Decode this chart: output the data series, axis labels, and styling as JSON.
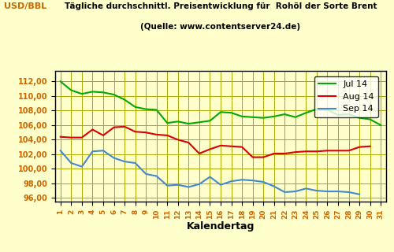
{
  "title_line1": "Tägliche durchschnittl. Preisentwicklung für  Rohöl der Sorte Brent",
  "title_line2": "(Quelle: www.contentserver24.de)",
  "ylabel": "USD/BBL",
  "xlabel": "Kalendertag",
  "background_color": "#FFFFCC",
  "ylim": [
    95.5,
    113.5
  ],
  "yticks": [
    96.0,
    98.0,
    100.0,
    102.0,
    104.0,
    106.0,
    108.0,
    110.0,
    112.0
  ],
  "days": [
    1,
    2,
    3,
    4,
    5,
    6,
    7,
    8,
    9,
    10,
    11,
    12,
    13,
    14,
    15,
    16,
    17,
    18,
    19,
    20,
    21,
    22,
    23,
    24,
    25,
    26,
    27,
    28,
    29,
    30,
    31
  ],
  "jul14": [
    112.0,
    110.8,
    110.3,
    110.6,
    110.5,
    110.2,
    109.5,
    108.5,
    108.2,
    108.1,
    106.3,
    106.5,
    106.2,
    106.4,
    106.6,
    107.8,
    107.7,
    107.2,
    107.1,
    107.0,
    107.2,
    107.5,
    107.1,
    107.7,
    108.2,
    108.1,
    107.4,
    107.5,
    107.0,
    106.8,
    106.0
  ],
  "aug14": [
    104.4,
    104.3,
    104.3,
    105.4,
    104.6,
    105.7,
    105.8,
    105.1,
    105.0,
    104.7,
    104.6,
    104.0,
    103.6,
    102.1,
    102.7,
    103.2,
    103.1,
    103.0,
    101.6,
    101.6,
    102.1,
    102.1,
    102.3,
    102.4,
    102.4,
    102.5,
    102.5,
    102.5,
    103.0,
    103.1,
    null
  ],
  "sep14": [
    102.5,
    100.8,
    100.3,
    102.4,
    102.5,
    101.5,
    101.0,
    100.8,
    99.3,
    99.0,
    97.7,
    97.8,
    97.5,
    97.9,
    98.9,
    97.8,
    98.3,
    98.5,
    98.4,
    98.2,
    97.6,
    96.8,
    96.9,
    97.3,
    97.0,
    96.9,
    96.9,
    96.8,
    96.5,
    null,
    null
  ],
  "jul14_color": "#00AA00",
  "aug14_color": "#DD0000",
  "sep14_color": "#4488CC",
  "grid_color": "#AAAA00",
  "legend_labels": [
    "Jul 14",
    "Aug 14",
    "Sep 14"
  ],
  "spine_color": "#000000",
  "tick_color": "#CC6600",
  "title_color": "#000080"
}
